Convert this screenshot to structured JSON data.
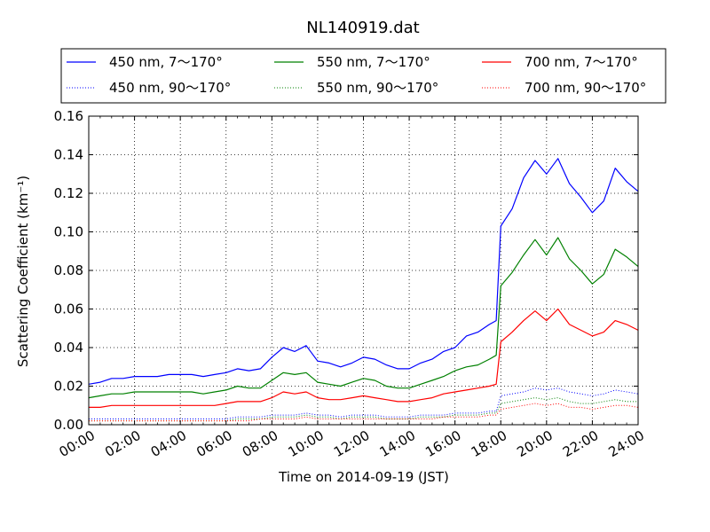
{
  "chart_data": {
    "type": "line",
    "title": "NL140919.dat",
    "xlabel": "Time on 2014-09-19 (JST)",
    "ylabel": "Scattering Coefficient (km⁻¹)",
    "xlim": [
      "00:00",
      "24:00"
    ],
    "ylim": [
      0,
      0.16
    ],
    "x_ticks": [
      "00:00",
      "02:00",
      "04:00",
      "06:00",
      "08:00",
      "10:00",
      "12:00",
      "14:00",
      "16:00",
      "18:00",
      "20:00",
      "22:00",
      "24:00"
    ],
    "y_ticks": [
      "0.00",
      "0.02",
      "0.04",
      "0.06",
      "0.08",
      "0.10",
      "0.12",
      "0.14",
      "0.16"
    ],
    "grid": true,
    "legend_position": "top",
    "x_hours": [
      0,
      0.5,
      1,
      1.5,
      2,
      2.5,
      3,
      3.5,
      4,
      4.5,
      5,
      5.5,
      6,
      6.5,
      7,
      7.5,
      8,
      8.5,
      9,
      9.5,
      10,
      10.5,
      11,
      11.5,
      12,
      12.5,
      13,
      13.5,
      14,
      14.5,
      15,
      15.5,
      16,
      16.5,
      17,
      17.5,
      17.8,
      18,
      18.5,
      19,
      19.5,
      20,
      20.5,
      21,
      21.5,
      22,
      22.5,
      23,
      23.5,
      24
    ],
    "series": [
      {
        "name": "450 nm, 7～170°",
        "color": "#0000ff",
        "style": "solid",
        "values": [
          0.021,
          0.022,
          0.024,
          0.024,
          0.025,
          0.025,
          0.025,
          0.026,
          0.026,
          0.026,
          0.025,
          0.026,
          0.027,
          0.029,
          0.028,
          0.029,
          0.035,
          0.04,
          0.038,
          0.041,
          0.033,
          0.032,
          0.03,
          0.032,
          0.035,
          0.034,
          0.031,
          0.029,
          0.029,
          0.032,
          0.034,
          0.038,
          0.04,
          0.046,
          0.048,
          0.052,
          0.054,
          0.103,
          0.112,
          0.128,
          0.137,
          0.13,
          0.138,
          0.125,
          0.118,
          0.11,
          0.116,
          0.133,
          0.126,
          0.121
        ]
      },
      {
        "name": "450 nm, 90～170°",
        "color": "#0000ff",
        "style": "dotted",
        "values": [
          0.003,
          0.003,
          0.003,
          0.003,
          0.003,
          0.003,
          0.003,
          0.003,
          0.003,
          0.003,
          0.003,
          0.003,
          0.003,
          0.004,
          0.004,
          0.004,
          0.005,
          0.005,
          0.005,
          0.006,
          0.005,
          0.005,
          0.004,
          0.005,
          0.005,
          0.005,
          0.004,
          0.004,
          0.004,
          0.005,
          0.005,
          0.005,
          0.006,
          0.006,
          0.006,
          0.007,
          0.007,
          0.015,
          0.016,
          0.017,
          0.019,
          0.018,
          0.019,
          0.017,
          0.016,
          0.015,
          0.016,
          0.018,
          0.017,
          0.016
        ]
      },
      {
        "name": "550 nm, 7～170°",
        "color": "#008000",
        "style": "solid",
        "values": [
          0.014,
          0.015,
          0.016,
          0.016,
          0.017,
          0.017,
          0.017,
          0.017,
          0.017,
          0.017,
          0.016,
          0.017,
          0.018,
          0.02,
          0.019,
          0.019,
          0.023,
          0.027,
          0.026,
          0.027,
          0.022,
          0.021,
          0.02,
          0.022,
          0.024,
          0.023,
          0.02,
          0.019,
          0.019,
          0.021,
          0.023,
          0.025,
          0.028,
          0.03,
          0.031,
          0.034,
          0.036,
          0.072,
          0.079,
          0.088,
          0.096,
          0.088,
          0.097,
          0.086,
          0.08,
          0.073,
          0.078,
          0.091,
          0.087,
          0.082
        ]
      },
      {
        "name": "550 nm, 90～170°",
        "color": "#008000",
        "style": "dotted",
        "values": [
          0.002,
          0.002,
          0.002,
          0.002,
          0.002,
          0.002,
          0.002,
          0.002,
          0.002,
          0.002,
          0.002,
          0.002,
          0.002,
          0.003,
          0.003,
          0.003,
          0.004,
          0.004,
          0.004,
          0.005,
          0.004,
          0.004,
          0.003,
          0.004,
          0.004,
          0.004,
          0.003,
          0.003,
          0.003,
          0.004,
          0.004,
          0.004,
          0.005,
          0.005,
          0.005,
          0.006,
          0.006,
          0.011,
          0.012,
          0.013,
          0.014,
          0.013,
          0.014,
          0.012,
          0.011,
          0.011,
          0.012,
          0.013,
          0.012,
          0.012
        ]
      },
      {
        "name": "700 nm, 7～170°",
        "color": "#ff0000",
        "style": "solid",
        "values": [
          0.009,
          0.009,
          0.01,
          0.01,
          0.01,
          0.01,
          0.01,
          0.01,
          0.01,
          0.01,
          0.01,
          0.01,
          0.011,
          0.012,
          0.012,
          0.012,
          0.014,
          0.017,
          0.016,
          0.017,
          0.014,
          0.013,
          0.013,
          0.014,
          0.015,
          0.014,
          0.013,
          0.012,
          0.012,
          0.013,
          0.014,
          0.016,
          0.017,
          0.018,
          0.019,
          0.02,
          0.021,
          0.043,
          0.048,
          0.054,
          0.059,
          0.054,
          0.06,
          0.052,
          0.049,
          0.046,
          0.048,
          0.054,
          0.052,
          0.049
        ]
      },
      {
        "name": "700 nm, 90～170°",
        "color": "#ff0000",
        "style": "dotted",
        "values": [
          0.002,
          0.002,
          0.002,
          0.002,
          0.002,
          0.002,
          0.002,
          0.002,
          0.002,
          0.002,
          0.002,
          0.002,
          0.002,
          0.002,
          0.002,
          0.003,
          0.003,
          0.003,
          0.003,
          0.004,
          0.003,
          0.003,
          0.003,
          0.003,
          0.003,
          0.003,
          0.003,
          0.003,
          0.003,
          0.003,
          0.003,
          0.004,
          0.004,
          0.004,
          0.004,
          0.005,
          0.005,
          0.008,
          0.009,
          0.01,
          0.011,
          0.01,
          0.011,
          0.009,
          0.009,
          0.008,
          0.009,
          0.01,
          0.01,
          0.009
        ]
      }
    ]
  }
}
